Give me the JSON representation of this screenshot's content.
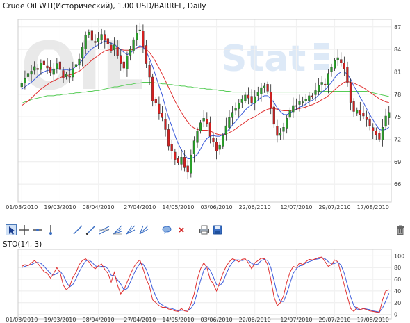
{
  "title": "Crude Oil WTI(Исторический), 1.00 USD/BARREL, Daily",
  "watermark": {
    "left": "OIL",
    "right": "Stat"
  },
  "indicator_label": "STO(14, 3)",
  "colors": {
    "up": "#2aa02a",
    "down": "#d42020",
    "ma_fast": "#3b5bdb",
    "ma_mid": "#e03030",
    "ma_slow": "#55cc55",
    "k_line": "#e03030",
    "d_line": "#3b5bdb"
  },
  "toolbar": {
    "tools": [
      {
        "name": "cursor-tool",
        "icon": "cursor-arrow-icon"
      },
      {
        "name": "crosshair-tool",
        "icon": "crosshair-icon"
      },
      {
        "name": "horizontal-line-tool",
        "icon": "horizontal-line-icon"
      },
      {
        "name": "vertical-line-tool",
        "icon": "vertical-line-icon"
      },
      {
        "name": "trend-line-tool",
        "icon": "trend-line-icon"
      },
      {
        "name": "ray-tool",
        "icon": "ray-icon"
      },
      {
        "name": "parallel-channel-tool",
        "icon": "parallel-channel-icon"
      },
      {
        "name": "fibonacci-fan-tool",
        "icon": "fibonacci-fan-icon"
      },
      {
        "name": "gann-fan-tool",
        "icon": "gann-fan-icon"
      },
      {
        "name": "speed-lines-tool",
        "icon": "speed-lines-icon"
      },
      {
        "name": "comment-tool",
        "icon": "speech-bubble-icon"
      },
      {
        "name": "delete-object-tool",
        "icon": "red-x-icon"
      },
      {
        "name": "print-button",
        "icon": "printer-icon"
      },
      {
        "name": "save-button",
        "icon": "floppy-disk-icon"
      },
      {
        "name": "trash-button",
        "icon": "trash-icon"
      }
    ]
  },
  "chart_data": [
    {
      "type": "candlestick",
      "x_tick_labels": [
        "01/03/2010",
        "19/03/2010",
        "08/04/2010",
        "27/04/2010",
        "14/05/2010",
        "03/06/2010",
        "22/06/2010",
        "12/07/2010",
        "29/07/2010",
        "17/08/2010"
      ],
      "y_ticks": [
        66,
        69,
        72,
        75,
        78,
        81,
        84,
        87
      ],
      "ylim": [
        63.6,
        88
      ],
      "grid": true,
      "closes": [
        79.5,
        80.1,
        80.8,
        81.1,
        81.7,
        81.3,
        82.2,
        81.9,
        81.5,
        80.9,
        81.4,
        82.1,
        81.3,
        80.2,
        80.7,
        80.3,
        81.4,
        82.0,
        82.7,
        84.3,
        85.9,
        86.3,
        85.2,
        84.9,
        85.5,
        86.0,
        85.2,
        84.7,
        83.8,
        84.6,
        83.2,
        82.1,
        81.5,
        83.1,
        84.0,
        85.3,
        86.2,
        86.6,
        84.4,
        82.1,
        80.3,
        77.1,
        76.8,
        75.4,
        74.9,
        73.3,
        71.1,
        70.4,
        69.3,
        68.9,
        69.6,
        68.2,
        67.6,
        69.9,
        71.8,
        73.1,
        74.2,
        74.8,
        74.1,
        72.4,
        71.6,
        70.4,
        71.2,
        72.5,
        73.8,
        74.9,
        75.6,
        76.2,
        76.8,
        77.4,
        77.9,
        77.5,
        76.9,
        77.7,
        78.3,
        78.9,
        79.1,
        78.4,
        76.2,
        74.0,
        72.5,
        72.8,
        73.6,
        74.8,
        75.9,
        76.5,
        76.4,
        77.1,
        77.0,
        77.4,
        77.8,
        77.7,
        78.5,
        79.2,
        79.6,
        79.2,
        80.8,
        81.6,
        82.5,
        82.9,
        82.2,
        81.4,
        79.6,
        76.9,
        75.7,
        75.9,
        75.3,
        75.1,
        74.6,
        73.8,
        73.1,
        72.6,
        72.0,
        73.6,
        75.1,
        75.6
      ],
      "ma_fast": [
        78.7,
        79.0,
        79.3,
        79.6,
        80.0,
        80.4,
        80.8,
        81.0,
        81.2,
        81.2,
        81.3,
        81.4,
        81.4,
        81.3,
        81.3,
        81.2,
        81.4,
        81.7,
        82.1,
        82.6,
        83.2,
        83.7,
        84.1,
        84.4,
        84.6,
        84.9,
        85.1,
        85.0,
        84.8,
        84.7,
        84.3,
        84.0,
        83.6,
        83.3,
        83.5,
        83.9,
        84.2,
        84.5,
        84.3,
        83.7,
        82.8,
        81.7,
        80.4,
        79.1,
        77.9,
        76.3,
        74.9,
        73.7,
        72.5,
        71.4,
        70.6,
        69.9,
        69.4,
        69.4,
        69.6,
        70.0,
        70.7,
        71.5,
        72.1,
        72.4,
        72.5,
        72.4,
        72.4,
        72.6,
        72.9,
        73.4,
        73.9,
        74.4,
        74.9,
        75.4,
        75.9,
        76.3,
        76.6,
        76.9,
        77.2,
        77.6,
        77.8,
        77.8,
        77.4,
        76.9,
        76.2,
        75.7,
        75.3,
        75.3,
        75.5,
        75.8,
        76.0,
        76.3,
        76.4,
        76.7,
        77.0,
        77.2,
        77.5,
        77.9,
        78.3,
        78.6,
        79.1,
        79.6,
        80.2,
        80.7,
        81.0,
        81.0,
        80.7,
        80.0,
        79.1,
        78.4,
        77.6,
        76.9,
        76.1,
        75.3,
        74.6,
        73.9,
        73.3,
        73.2,
        73.3,
        73.6
      ],
      "ma_mid": [
        76.5,
        76.8,
        77.1,
        77.5,
        77.9,
        78.3,
        78.7,
        79.0,
        79.3,
        79.6,
        79.8,
        80.0,
        80.2,
        80.4,
        80.5,
        80.6,
        80.7,
        80.9,
        81.1,
        81.4,
        81.8,
        82.2,
        82.6,
        82.9,
        83.2,
        83.5,
        83.8,
        83.9,
        84.0,
        84.1,
        84.1,
        84.0,
        83.9,
        83.9,
        83.9,
        84.0,
        84.2,
        84.3,
        84.3,
        84.0,
        83.6,
        83.0,
        82.3,
        81.5,
        80.7,
        79.8,
        78.9,
        78.0,
        77.1,
        76.3,
        75.6,
        74.9,
        74.3,
        73.8,
        73.5,
        73.3,
        73.2,
        73.2,
        73.2,
        73.1,
        72.9,
        72.7,
        72.6,
        72.6,
        72.7,
        72.9,
        73.1,
        73.4,
        73.7,
        74.0,
        74.3,
        74.6,
        74.8,
        75.0,
        75.3,
        75.6,
        75.8,
        76.0,
        76.1,
        76.1,
        76.0,
        75.9,
        75.8,
        75.8,
        75.8,
        75.9,
        76.0,
        76.1,
        76.2,
        76.3,
        76.5,
        76.6,
        76.8,
        77.0,
        77.3,
        77.5,
        77.8,
        78.2,
        78.6,
        79.0,
        79.3,
        79.6,
        79.7,
        79.6,
        79.5,
        79.3,
        79.1,
        78.9,
        78.6,
        78.3,
        78.0,
        77.7,
        77.4,
        77.2,
        77.0,
        76.9
      ],
      "ma_slow": [
        76.8,
        77.0,
        77.1,
        77.3,
        77.4,
        77.5,
        77.6,
        77.7,
        77.8,
        77.8,
        77.8,
        77.9,
        77.9,
        78.0,
        78.0,
        78.1,
        78.1,
        78.2,
        78.2,
        78.3,
        78.3,
        78.4,
        78.4,
        78.5,
        78.5,
        78.6,
        78.7,
        78.8,
        78.9,
        79.0,
        79.0,
        79.1,
        79.2,
        79.3,
        79.3,
        79.4,
        79.5,
        79.5,
        79.6,
        79.6,
        79.6,
        79.6,
        79.5,
        79.5,
        79.4,
        79.4,
        79.3,
        79.3,
        79.2,
        79.2,
        79.1,
        79.1,
        79.0,
        79.0,
        78.9,
        78.9,
        78.8,
        78.8,
        78.7,
        78.7,
        78.6,
        78.6,
        78.5,
        78.5,
        78.4,
        78.4,
        78.3,
        78.3,
        78.3,
        78.3,
        78.3,
        78.3,
        78.3,
        78.3,
        78.3,
        78.3,
        78.3,
        78.3,
        78.3,
        78.3,
        78.3,
        78.3,
        78.3,
        78.3,
        78.3,
        78.3,
        78.3,
        78.3,
        78.3,
        78.3,
        78.3,
        78.3,
        78.3,
        78.4,
        78.4,
        78.4,
        78.4,
        78.4,
        78.4,
        78.4,
        78.4,
        78.4,
        78.4,
        78.4,
        78.4,
        78.4,
        78.4,
        78.4,
        78.4,
        78.3,
        78.2,
        78.1,
        78.0,
        77.9,
        77.8,
        77.7
      ]
    },
    {
      "type": "line",
      "series": [
        {
          "name": "%K",
          "values": [
            82,
            85,
            83,
            88,
            92,
            87,
            80,
            73,
            70,
            62,
            70,
            80,
            72,
            50,
            42,
            48,
            63,
            72,
            85,
            92,
            95,
            90,
            82,
            78,
            83,
            86,
            77,
            70,
            55,
            72,
            50,
            35,
            42,
            55,
            68,
            80,
            88,
            93,
            78,
            60,
            48,
            25,
            20,
            15,
            12,
            12,
            9,
            8,
            6,
            5,
            10,
            6,
            5,
            18,
            35,
            60,
            78,
            88,
            80,
            60,
            52,
            40,
            55,
            70,
            82,
            90,
            95,
            93,
            90,
            94,
            95,
            88,
            78,
            88,
            92,
            96,
            95,
            85,
            60,
            30,
            15,
            20,
            32,
            55,
            72,
            82,
            80,
            88,
            85,
            90,
            94,
            93,
            95,
            97,
            98,
            90,
            82,
            85,
            93,
            90,
            70,
            50,
            30,
            10,
            5,
            12,
            8,
            10,
            8,
            6,
            5,
            4,
            3,
            25,
            40,
            42
          ]
        },
        {
          "name": "%D",
          "values": [
            80,
            82,
            84,
            85,
            88,
            89,
            87,
            82,
            76,
            70,
            67,
            70,
            74,
            67,
            55,
            47,
            51,
            61,
            73,
            83,
            91,
            93,
            89,
            83,
            81,
            82,
            82,
            78,
            67,
            66,
            59,
            52,
            42,
            44,
            55,
            68,
            79,
            87,
            86,
            77,
            62,
            44,
            31,
            20,
            16,
            13,
            11,
            10,
            8,
            6,
            7,
            7,
            7,
            10,
            19,
            38,
            58,
            75,
            82,
            76,
            64,
            51,
            49,
            55,
            69,
            81,
            89,
            93,
            93,
            92,
            93,
            92,
            87,
            85,
            86,
            92,
            94,
            92,
            80,
            58,
            35,
            22,
            22,
            36,
            53,
            70,
            78,
            83,
            84,
            88,
            90,
            92,
            94,
            95,
            97,
            95,
            90,
            86,
            87,
            89,
            84,
            70,
            50,
            30,
            15,
            9,
            8,
            10,
            9,
            8,
            6,
            5,
            4,
            11,
            23,
            36
          ]
        }
      ],
      "y_ticks": [
        0,
        20,
        40,
        60,
        80,
        100
      ],
      "ylim": [
        -4,
        104
      ],
      "grid": true
    }
  ]
}
